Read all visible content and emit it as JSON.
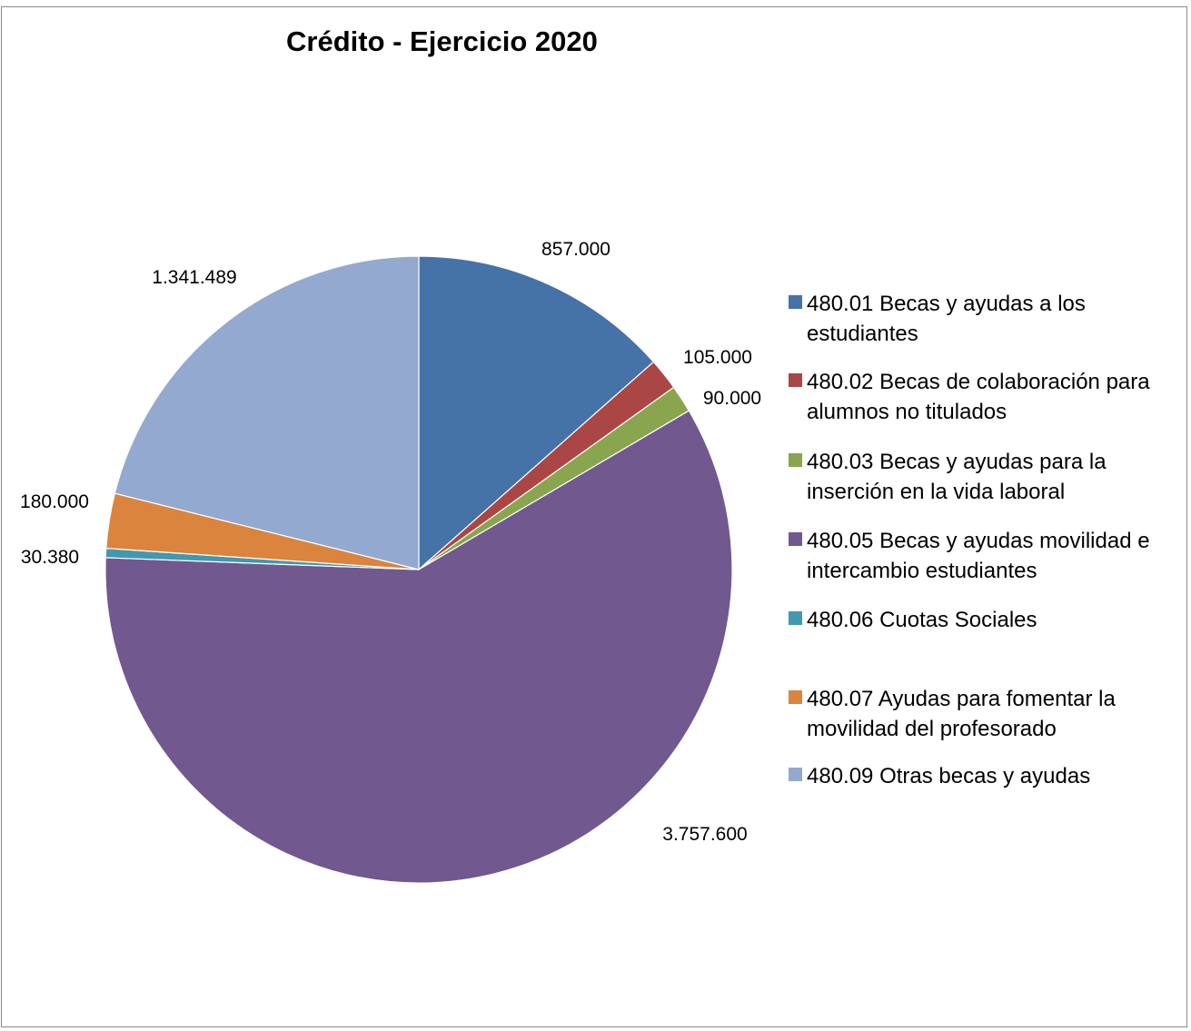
{
  "chart_data": {
    "type": "pie",
    "title": "Crédito - Ejercicio 2020",
    "start_angle_deg": 0,
    "direction": "clockwise",
    "legend_position": "right",
    "slices": [
      {
        "label": "480.01 Becas y ayudas a los estudiantes",
        "value": 857000,
        "value_label": "857.000",
        "color": "#4572A7"
      },
      {
        "label": "480.02 Becas de colaboración para alumnos no titulados",
        "value": 105000,
        "value_label": "105.000",
        "color": "#AA4643"
      },
      {
        "label": "480.03 Becas y ayudas para la inserción en la vida laboral",
        "value": 90000,
        "value_label": "90.000",
        "color": "#89A54E"
      },
      {
        "label": "480.05 Becas y ayudas movilidad e intercambio estudiantes",
        "value": 3757600,
        "value_label": "3.757.600",
        "color": "#71588F"
      },
      {
        "label": "480.06 Cuotas Sociales",
        "value": 30380,
        "value_label": "30.380",
        "color": "#4198AF"
      },
      {
        "label": "480.07 Ayudas para fomentar la movilidad del profesorado",
        "value": 180000,
        "value_label": "180.000",
        "color": "#DB843D"
      },
      {
        "label": "480.09 Otras becas y ayudas",
        "value": 1341489,
        "value_label": "1.341.489",
        "color": "#93A9CF"
      }
    ]
  }
}
